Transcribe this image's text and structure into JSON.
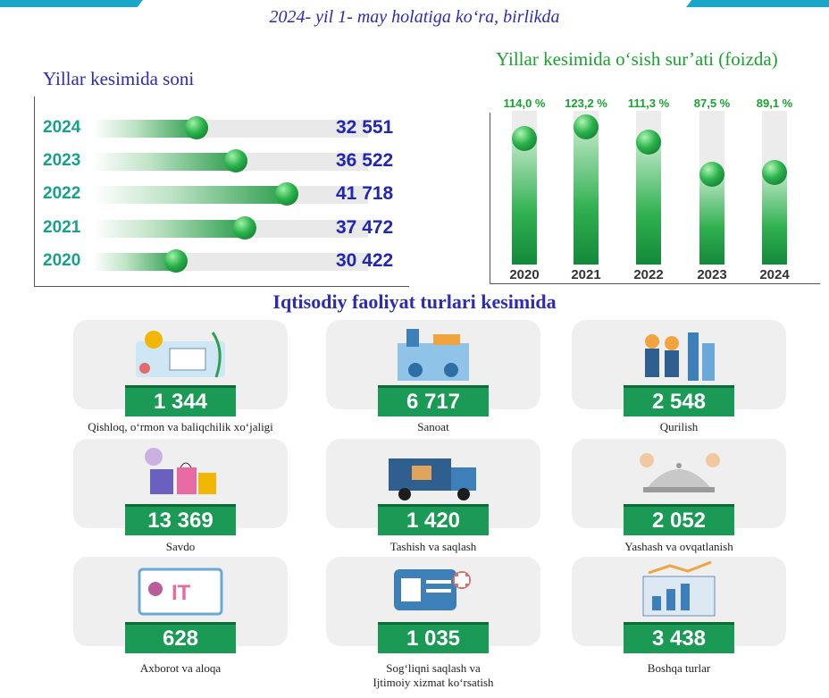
{
  "header": {
    "title": "2024- yil 1- may holatiga ko‘ra, birlikda"
  },
  "left_chart_title": "Yillar kesimida soni",
  "right_chart_title": "Yillar kesimida o‘sish sur’ati (foizda)",
  "section_title": "Iqtisodiy faoliyat turlari kesimida",
  "colors": {
    "title_blue": "#2b2bb5",
    "accent_green": "#18a32c",
    "teal": "#18a08e",
    "badge_green": "#1a9a55"
  },
  "chart_data": [
    {
      "type": "bar",
      "orientation": "horizontal",
      "title": "Yillar kesimida soni",
      "categories": [
        "2024",
        "2023",
        "2022",
        "2021",
        "2020"
      ],
      "values": [
        32551,
        36522,
        41718,
        37472,
        30422
      ],
      "value_labels": [
        "32 551",
        "36 522",
        "41 718",
        "37 472",
        "30 422"
      ],
      "xlim": [
        22000,
        50000
      ],
      "grid": false
    },
    {
      "type": "bar",
      "orientation": "vertical",
      "title": "Yillar kesimida o‘sish sur’ati (foizda)",
      "categories": [
        "2020",
        "2021",
        "2022",
        "2023",
        "2024"
      ],
      "values": [
        114.0,
        123.2,
        111.3,
        87.5,
        89.1
      ],
      "value_labels": [
        "114,0 %",
        "123,2 %",
        "111,3 %",
        "87,5 %",
        "89,1 %"
      ],
      "ylim": [
        20,
        135
      ],
      "grid": false
    }
  ],
  "activities": [
    {
      "value": "1 344",
      "label": "Qishloq, o‘rmon va baliqchilik xo‘jaligi",
      "icon": "agriculture-icon"
    },
    {
      "value": "6 717",
      "label": "Sanoat",
      "icon": "factory-icon"
    },
    {
      "value": "2 548",
      "label": "Qurilish",
      "icon": "construction-icon"
    },
    {
      "value": "13 369",
      "label": "Savdo",
      "icon": "shopping-icon"
    },
    {
      "value": "1 420",
      "label": "Tashish va saqlash",
      "icon": "truck-icon"
    },
    {
      "value": "2 052",
      "label": "Yashash va ovqatlanish",
      "icon": "food-service-icon"
    },
    {
      "value": "628",
      "label": "Axborot va aloqa",
      "icon": "it-icon"
    },
    {
      "value": "1 035",
      "label": "Sog‘liqni saqlash va",
      "label2": "Ijtimoiy xizmat ko‘rsatish",
      "icon": "health-card-icon"
    },
    {
      "value": "3 438",
      "label": "Boshqa turlar",
      "icon": "analytics-icon"
    }
  ]
}
